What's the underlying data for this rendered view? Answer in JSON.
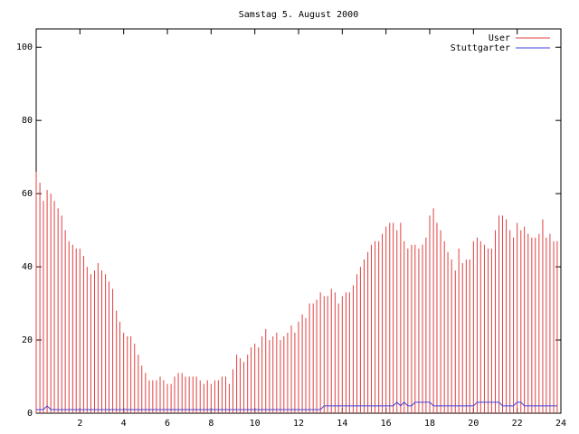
{
  "chart_data": {
    "type": "impulses",
    "title": "Samstag 5. August 2000",
    "legend": "top-right",
    "xlim": [
      0,
      24
    ],
    "xticks": [
      2,
      4,
      6,
      8,
      10,
      12,
      14,
      16,
      18,
      20,
      22,
      24
    ],
    "ylim": [
      0,
      105
    ],
    "yticks": [
      0,
      20,
      40,
      60,
      80,
      100
    ],
    "x": [
      0,
      0.17,
      0.33,
      0.5,
      0.67,
      0.83,
      1,
      1.17,
      1.33,
      1.5,
      1.67,
      1.83,
      2,
      2.17,
      2.33,
      2.5,
      2.67,
      2.83,
      3,
      3.17,
      3.33,
      3.5,
      3.67,
      3.83,
      4,
      4.17,
      4.33,
      4.5,
      4.67,
      4.83,
      5,
      5.17,
      5.33,
      5.5,
      5.67,
      5.83,
      6,
      6.17,
      6.33,
      6.5,
      6.67,
      6.83,
      7,
      7.17,
      7.33,
      7.5,
      7.67,
      7.83,
      8,
      8.17,
      8.33,
      8.5,
      8.67,
      8.83,
      9,
      9.17,
      9.33,
      9.5,
      9.67,
      9.83,
      10,
      10.17,
      10.33,
      10.5,
      10.67,
      10.83,
      11,
      11.17,
      11.33,
      11.5,
      11.67,
      11.83,
      12,
      12.17,
      12.33,
      12.5,
      12.67,
      12.83,
      13,
      13.17,
      13.33,
      13.5,
      13.67,
      13.83,
      14,
      14.17,
      14.33,
      14.5,
      14.67,
      14.83,
      15,
      15.17,
      15.33,
      15.5,
      15.67,
      15.83,
      16,
      16.17,
      16.33,
      16.5,
      16.67,
      16.83,
      17,
      17.17,
      17.33,
      17.5,
      17.67,
      17.83,
      18,
      18.17,
      18.33,
      18.5,
      18.67,
      18.83,
      19,
      19.17,
      19.33,
      19.5,
      19.67,
      19.83,
      20,
      20.17,
      20.33,
      20.5,
      20.67,
      20.83,
      21,
      21.17,
      21.33,
      21.5,
      21.67,
      21.83,
      22,
      22.17,
      22.33,
      22.5,
      22.67,
      22.83,
      23,
      23.17,
      23.33,
      23.5,
      23.67,
      23.83
    ],
    "series": [
      {
        "name": "User",
        "color": "#e04040",
        "style": "impulses",
        "values": [
          66,
          63,
          58,
          61,
          60,
          58,
          56,
          54,
          50,
          47,
          46,
          45,
          45,
          43,
          40,
          38,
          39,
          41,
          39,
          38,
          36,
          34,
          28,
          25,
          22,
          21,
          21,
          19,
          16,
          13,
          11,
          9,
          9,
          9,
          10,
          9,
          8,
          8,
          10,
          11,
          11,
          10,
          10,
          10,
          10,
          9,
          8,
          9,
          8,
          9,
          9,
          10,
          10,
          8,
          12,
          16,
          15,
          14,
          16,
          18,
          19,
          18,
          21,
          23,
          20,
          21,
          22,
          20,
          21,
          22,
          24,
          22,
          25,
          27,
          26,
          30,
          30,
          31,
          33,
          32,
          32,
          34,
          33,
          30,
          32,
          33,
          33,
          35,
          38,
          40,
          42,
          44,
          46,
          47,
          47,
          49,
          51,
          52,
          52,
          50,
          52,
          47,
          45,
          46,
          46,
          45,
          46,
          48,
          54,
          56,
          52,
          50,
          47,
          44,
          42,
          39,
          45,
          41,
          42,
          42,
          47,
          48,
          47,
          46,
          45,
          45,
          50,
          54,
          54,
          53,
          50,
          48,
          52,
          50,
          51,
          49,
          48,
          48,
          49,
          53,
          48,
          49,
          47,
          47
        ]
      },
      {
        "name": "Stuttgarter",
        "color": "#4040e0",
        "style": "line",
        "values": [
          1,
          1,
          1,
          2,
          1,
          1,
          1,
          1,
          1,
          1,
          1,
          1,
          1,
          1,
          1,
          1,
          1,
          1,
          1,
          1,
          1,
          1,
          1,
          1,
          1,
          1,
          1,
          1,
          1,
          1,
          1,
          1,
          1,
          1,
          1,
          1,
          1,
          1,
          1,
          1,
          1,
          1,
          1,
          1,
          1,
          1,
          1,
          1,
          1,
          1,
          1,
          1,
          1,
          1,
          1,
          1,
          1,
          1,
          1,
          1,
          1,
          1,
          1,
          1,
          1,
          1,
          1,
          1,
          1,
          1,
          1,
          1,
          1,
          1,
          1,
          1,
          1,
          1,
          1,
          2,
          2,
          2,
          2,
          2,
          2,
          2,
          2,
          2,
          2,
          2,
          2,
          2,
          2,
          2,
          2,
          2,
          2,
          2,
          2,
          3,
          2,
          3,
          2,
          2,
          3,
          3,
          3,
          3,
          3,
          2,
          2,
          2,
          2,
          2,
          2,
          2,
          2,
          2,
          2,
          2,
          2,
          3,
          3,
          3,
          3,
          3,
          3,
          3,
          2,
          2,
          2,
          2,
          3,
          3,
          2,
          2,
          2,
          2,
          2,
          2,
          2,
          2,
          2,
          2
        ]
      }
    ]
  }
}
